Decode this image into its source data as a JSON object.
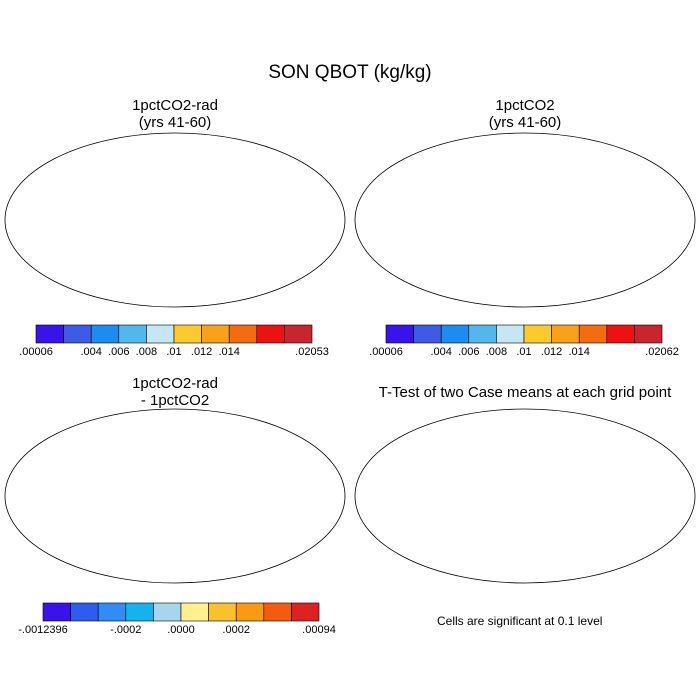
{
  "title": "SON QBOT (kg/kg)",
  "panels": [
    {
      "title_line1": "1pctCO2-rad",
      "title_line2": "(yrs 41-60)"
    },
    {
      "title_line1": "1pctCO2",
      "title_line2": "(yrs 41-60)"
    },
    {
      "title_line1": "1pctCO2-rad",
      "title_line2": "- 1pctCO2"
    },
    {
      "title_line1": "T-Test of two Case means at each grid point",
      "title_line2": ""
    }
  ],
  "colorbars": [
    {
      "colors": [
        "#3a12ea",
        "#3f5ae6",
        "#1d8cf0",
        "#52b7ec",
        "#c5e6f5",
        "#fbcb2e",
        "#f9a11b",
        "#f56b12",
        "#ec1212",
        "#c8262e"
      ],
      "labels": [
        ".00006",
        ".004",
        ".006",
        ".008",
        ".01",
        ".012",
        ".014",
        ".02053"
      ]
    },
    {
      "colors": [
        "#3a12ea",
        "#3f5ae6",
        "#1d8cf0",
        "#52b7ec",
        "#c5e6f5",
        "#fbcb2e",
        "#f9a11b",
        "#f56b12",
        "#ec1212",
        "#c8262e"
      ],
      "labels": [
        ".00006",
        ".004",
        ".006",
        ".008",
        ".01",
        ".012",
        ".014",
        ".02062"
      ]
    },
    {
      "colors": [
        "#3a12ea",
        "#2e5cf0",
        "#2f8df3",
        "#14b3ef",
        "#a6d6ee",
        "#fff08e",
        "#fbc02d",
        "#f99a12",
        "#f55b0e",
        "#dd2222"
      ],
      "labels": [
        "-.0012396",
        "-.0002",
        ".0000",
        ".0002",
        ".00094"
      ]
    }
  ],
  "note": "Cells are significant at 0.1 level"
}
